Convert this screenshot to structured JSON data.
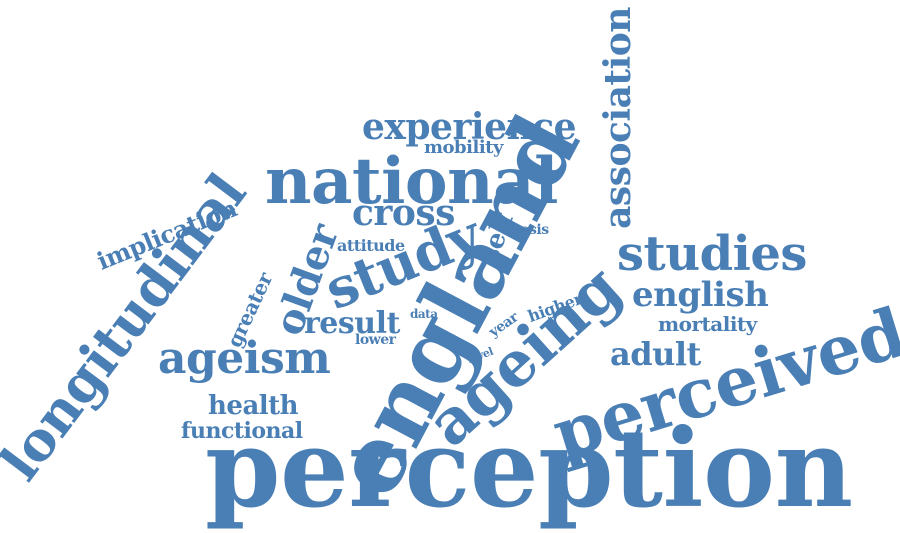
{
  "color": "#4a7fb5",
  "words": {
    "perception": "perception",
    "england": "england",
    "perceived": "perceived",
    "longitudinal": "longitudinal",
    "national": "national",
    "study": "study",
    "ageing": "ageing",
    "studies": "studies",
    "association": "association",
    "experience": "experience",
    "ageism": "ageism",
    "older": "older",
    "cross": "cross",
    "english": "english",
    "result": "result",
    "adult": "adult",
    "health": "health",
    "functional": "functional",
    "implication": "implication",
    "self": "self",
    "mortality": "mortality",
    "greater": "greater",
    "mobility": "mobility",
    "attitude": "attitude",
    "thesis": "thesis",
    "higher": "higher",
    "year": "year",
    "data": "data",
    "lower": "lower",
    "level": "level"
  }
}
